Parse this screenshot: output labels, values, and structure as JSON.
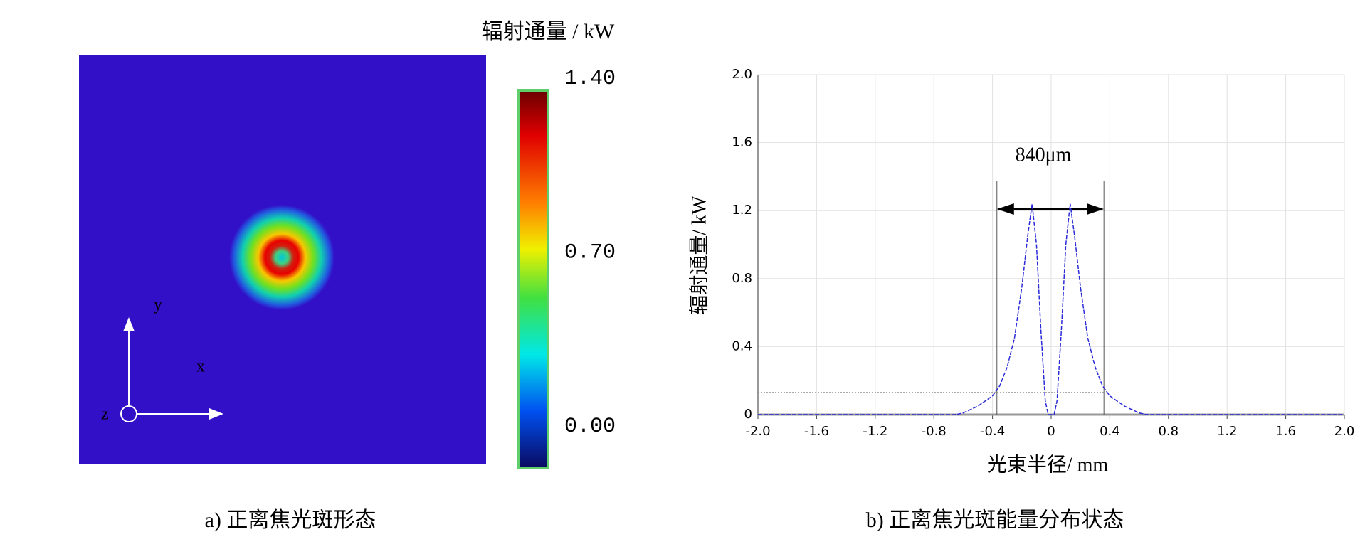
{
  "chart_data": [
    {
      "type": "heatmap",
      "colorbar_label": "辐射通量 / kW",
      "clim": [
        0,
        1.4
      ],
      "cticks": [
        {
          "value": 1.4,
          "label": "1.40"
        },
        {
          "value": 0.7,
          "label": "0.70"
        },
        {
          "value": 0,
          "label": "0.00"
        }
      ],
      "axis_labels": {
        "x": "x",
        "y": "y",
        "z": "z"
      },
      "caption": "a) 正离焦光斑形态"
    },
    {
      "type": "line",
      "ylabel": "辐射通量/ kW",
      "xlabel": "光束半径/ mm",
      "annotation": "840μm",
      "caption": "b) 正离焦光斑能量分布状态",
      "color": "#2a2ad8",
      "x": [
        -2.0,
        -0.65,
        -0.6,
        -0.5,
        -0.4,
        -0.35,
        -0.3,
        -0.25,
        -0.2,
        -0.16,
        -0.13,
        -0.1,
        -0.07,
        -0.04,
        -0.02,
        0,
        0.02,
        0.04,
        0.07,
        0.1,
        0.13,
        0.16,
        0.2,
        0.25,
        0.3,
        0.35,
        0.4,
        0.5,
        0.6,
        0.65,
        2.0
      ],
      "values": [
        0,
        0,
        0.01,
        0.05,
        0.11,
        0.17,
        0.28,
        0.45,
        0.75,
        1.05,
        1.24,
        1.0,
        0.5,
        0.08,
        0,
        0,
        0,
        0.08,
        0.5,
        1.0,
        1.24,
        1.05,
        0.75,
        0.45,
        0.28,
        0.17,
        0.11,
        0.05,
        0.01,
        0,
        0
      ],
      "reference_lines": {
        "x": [
          -0.37,
          0.36
        ],
        "y": 0.13
      },
      "xlim": [
        -2,
        2
      ],
      "ylim": [
        0,
        2
      ],
      "xticks": [
        {
          "value": -2,
          "label": "-2.0"
        },
        -1.6,
        -1.2,
        -0.8,
        -0.4,
        0,
        0.4,
        0.8,
        1.2,
        1.6,
        {
          "value": 2,
          "label": "2.0"
        }
      ],
      "yticks": [
        0,
        0.4,
        0.8,
        1.2,
        1.6,
        {
          "value": 2,
          "label": "2.0"
        }
      ],
      "grid": true
    }
  ]
}
